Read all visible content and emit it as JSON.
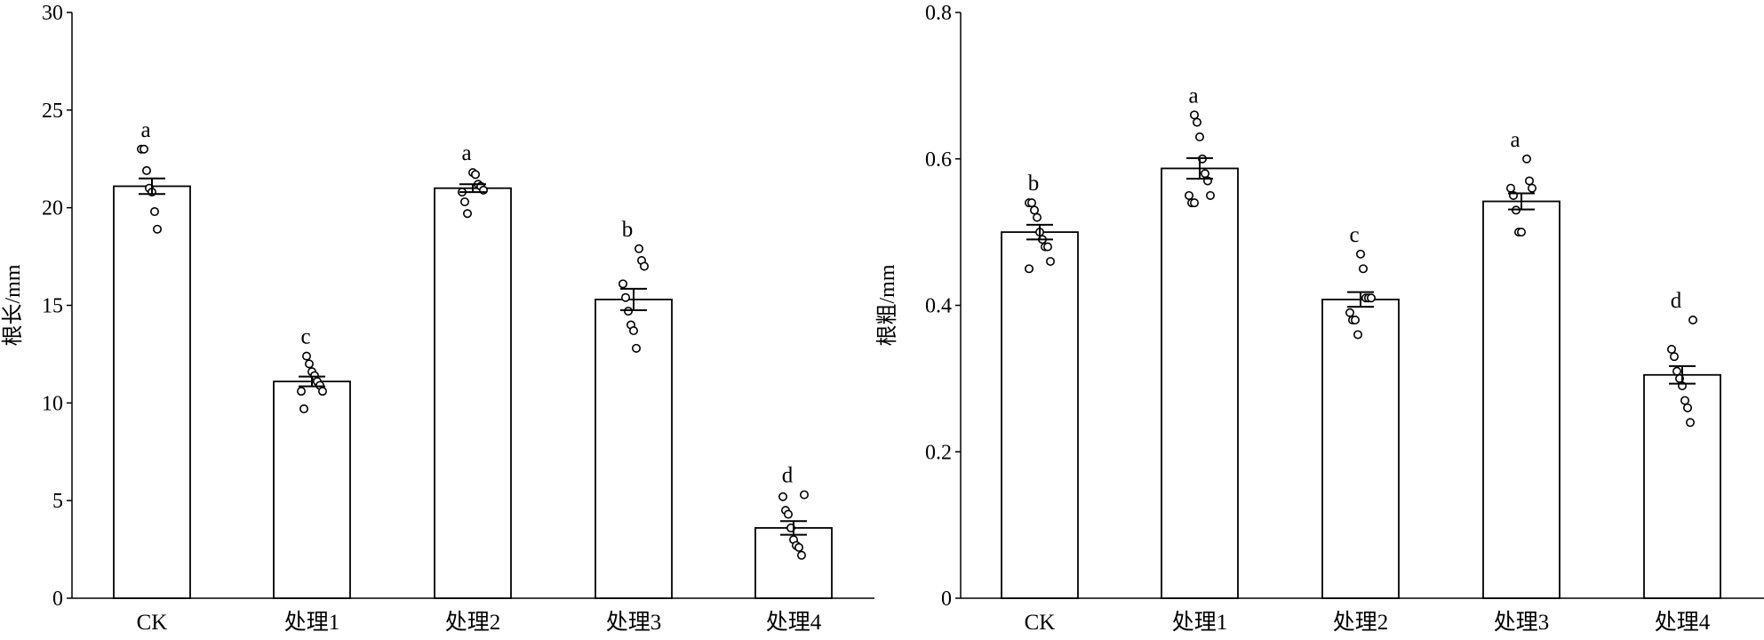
{
  "chart_data": [
    {
      "type": "bar",
      "ylabel": "根长/mm",
      "xlabel": "",
      "ylim": [
        0,
        30
      ],
      "yticks": [
        "0",
        "5",
        "10",
        "15",
        "20",
        "25",
        "30"
      ],
      "categories": [
        "CK",
        "处理1",
        "处理2",
        "处理3",
        "处理4"
      ],
      "values": [
        21.1,
        11.1,
        21.0,
        15.3,
        3.6
      ],
      "errors": [
        0.4,
        0.25,
        0.2,
        0.55,
        0.35
      ],
      "significance": [
        "a",
        "c",
        "a",
        "b",
        "d"
      ],
      "points": [
        [
          23.0,
          23.0,
          21.9,
          21.0,
          20.8,
          19.8,
          18.9
        ],
        [
          12.4,
          12.0,
          11.6,
          11.4,
          11.1,
          10.9,
          10.6,
          10.6,
          9.7
        ],
        [
          21.8,
          21.7,
          21.2,
          21.1,
          20.9,
          20.8,
          20.3,
          19.7
        ],
        [
          17.9,
          17.3,
          17.0,
          16.1,
          15.4,
          14.7,
          14.0,
          13.7,
          12.8
        ],
        [
          5.3,
          5.2,
          4.5,
          4.3,
          3.6,
          3.0,
          2.7,
          2.6,
          2.2
        ]
      ],
      "grid": false
    },
    {
      "type": "bar",
      "ylabel": "根粗/mm",
      "xlabel": "",
      "ylim": [
        0,
        0.8
      ],
      "yticks": [
        "0",
        "0.2",
        "0.4",
        "0.6",
        "0.8"
      ],
      "categories": [
        "CK",
        "处理1",
        "处理2",
        "处理3",
        "处理4"
      ],
      "values": [
        0.5,
        0.587,
        0.408,
        0.542,
        0.305
      ],
      "errors": [
        0.01,
        0.014,
        0.01,
        0.011,
        0.012
      ],
      "significance": [
        "b",
        "a",
        "c",
        "a",
        "d"
      ],
      "points": [
        [
          0.54,
          0.54,
          0.53,
          0.52,
          0.5,
          0.49,
          0.48,
          0.48,
          0.46,
          0.45
        ],
        [
          0.66,
          0.65,
          0.63,
          0.6,
          0.58,
          0.57,
          0.55,
          0.55,
          0.54,
          0.54
        ],
        [
          0.47,
          0.45,
          0.41,
          0.41,
          0.41,
          0.39,
          0.38,
          0.38,
          0.36
        ],
        [
          0.6,
          0.57,
          0.56,
          0.56,
          0.55,
          0.53,
          0.5,
          0.5
        ],
        [
          0.38,
          0.34,
          0.33,
          0.31,
          0.3,
          0.29,
          0.27,
          0.26,
          0.24
        ]
      ],
      "grid": false
    }
  ]
}
